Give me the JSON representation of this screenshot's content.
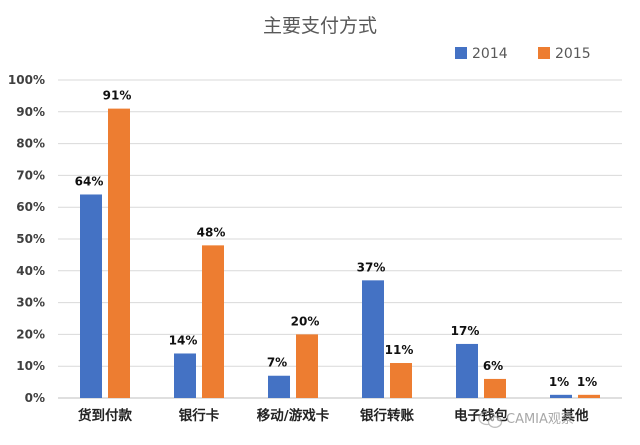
{
  "chart_data": {
    "type": "bar",
    "title": "主要支付方式",
    "categories": [
      "货到付款",
      "银行卡",
      "移动/游戏卡",
      "银行转账",
      "电子钱包",
      "其他"
    ],
    "series": [
      {
        "name": "2014",
        "color": "#4472c4",
        "values": [
          64,
          14,
          7,
          37,
          17,
          1
        ]
      },
      {
        "name": "2015",
        "color": "#ed7d31",
        "values": [
          91,
          48,
          20,
          11,
          6,
          1
        ]
      }
    ],
    "ylim": [
      0,
      100
    ],
    "yticks": [
      0,
      10,
      20,
      30,
      40,
      50,
      60,
      70,
      80,
      90,
      100
    ],
    "value_suffix": "%",
    "xlabel": "",
    "ylabel": "",
    "grid": true,
    "legend_position": "top-right"
  },
  "watermark": {
    "text": "CAMIA观察",
    "icon": "wechat-icon"
  }
}
